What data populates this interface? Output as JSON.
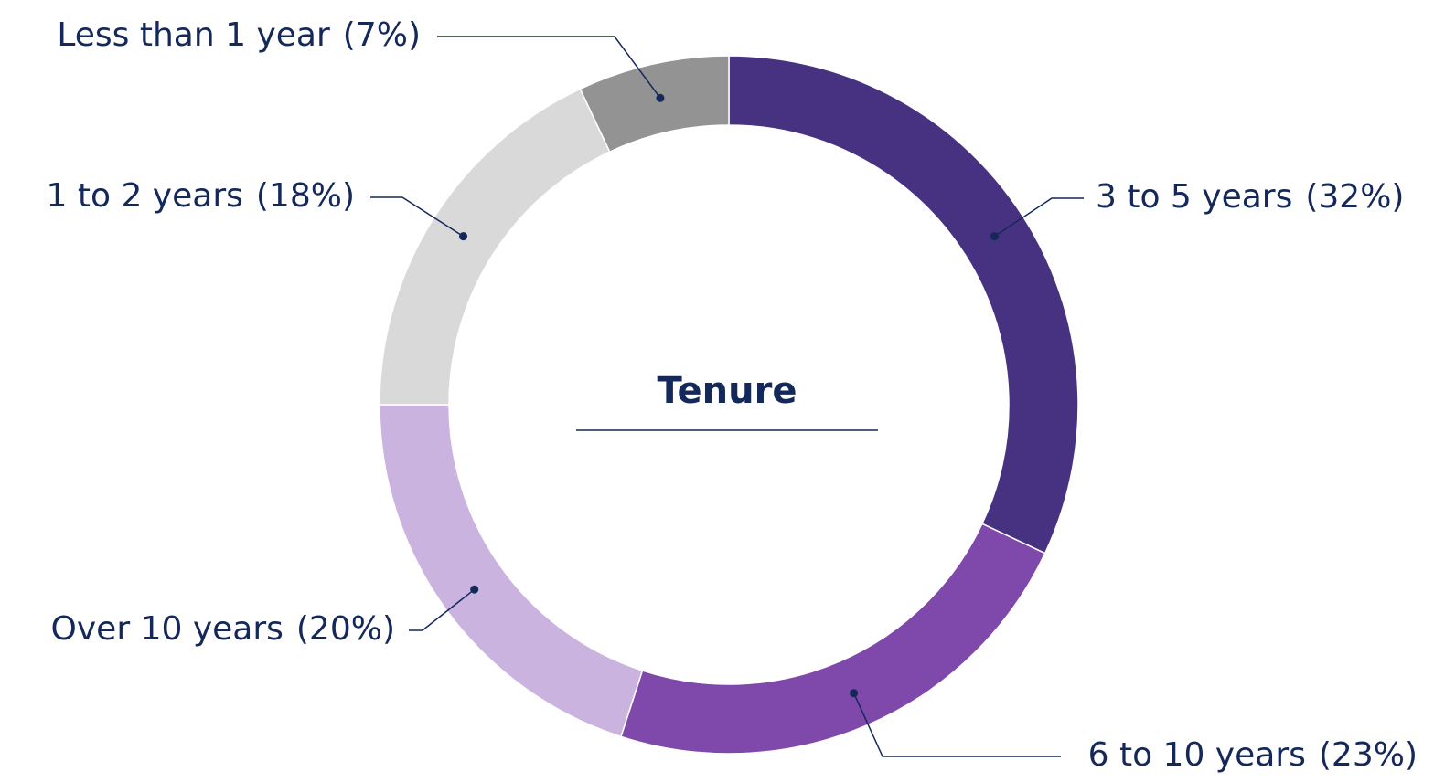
{
  "chart_data": {
    "type": "donut",
    "title": "Tenure",
    "categories": [
      "3 to 5 years",
      "6 to 10 years",
      "Over 10 years",
      "1 to 2 years",
      "Less than 1 year"
    ],
    "values": [
      32,
      23,
      20,
      18,
      7
    ],
    "value_labels": [
      "(32%)",
      "(23%)",
      "(20%)",
      "(18%)",
      "(7%)"
    ],
    "colors": [
      "#463281",
      "#7f48ab",
      "#cbb3e0",
      "#d9d9d9",
      "#939393"
    ]
  }
}
